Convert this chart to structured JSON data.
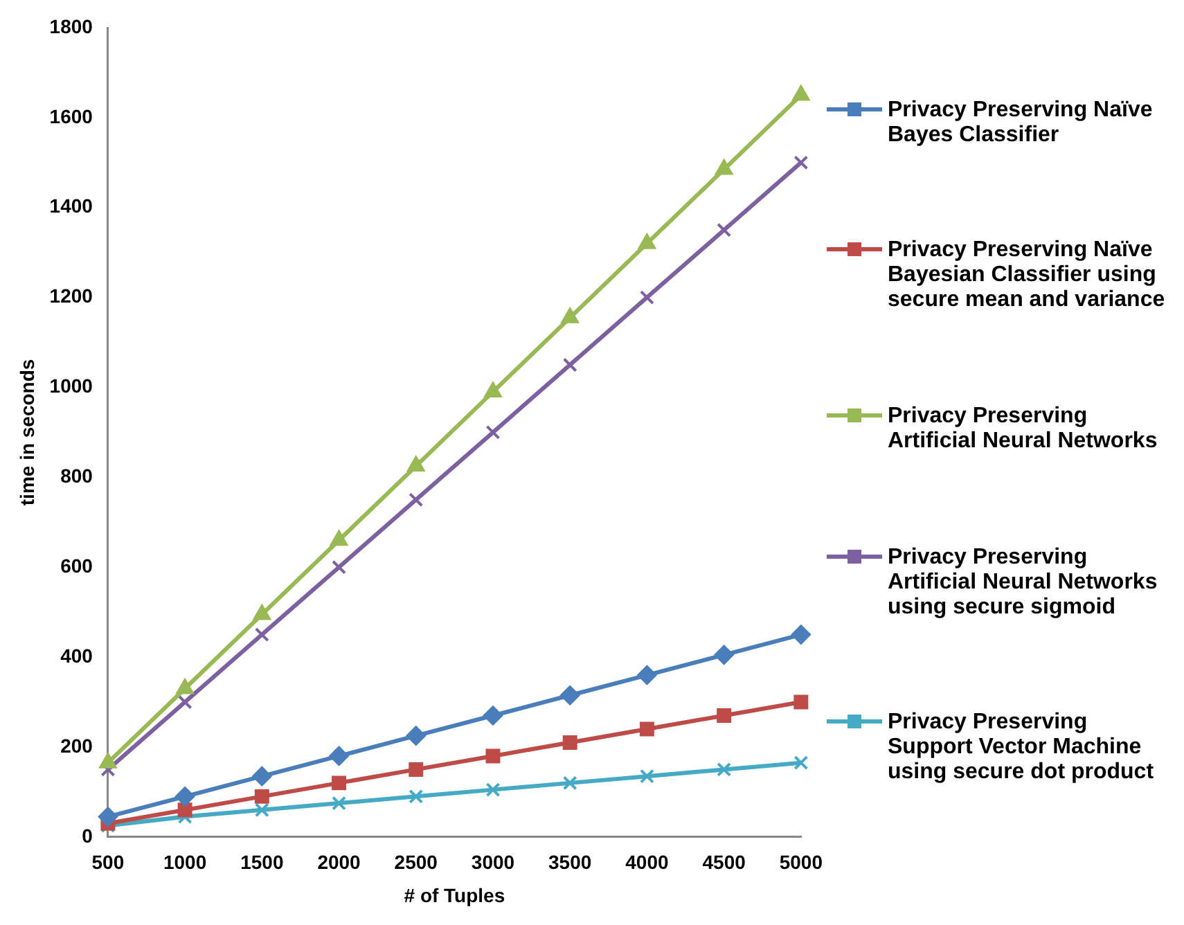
{
  "chart_data": {
    "type": "line",
    "xlabel": "# of Tuples",
    "ylabel": "time in seconds",
    "categories": [
      "500",
      "1000",
      "1500",
      "2000",
      "2500",
      "3000",
      "3500",
      "4000",
      "4500",
      "5000"
    ],
    "series": [
      {
        "name": "Privacy Preserving Naïve Bayes Classifier",
        "color": "#4a7ebb",
        "marker": "diamond",
        "values": [
          45,
          90,
          135,
          180,
          225,
          270,
          315,
          360,
          405,
          450
        ]
      },
      {
        "name": "Privacy Preserving Naïve Bayesian Classifier using secure mean and variance",
        "color": "#be4b48",
        "marker": "square",
        "values": [
          30,
          60,
          90,
          120,
          150,
          180,
          210,
          240,
          270,
          300
        ]
      },
      {
        "name": "Privacy Preserving Artificial Neural Networks",
        "color": "#98b954",
        "marker": "triangle",
        "values": [
          165,
          330,
          495,
          660,
          825,
          990,
          1155,
          1320,
          1485,
          1650
        ]
      },
      {
        "name": "Privacy Preserving Artificial Neural Networks using secure sigmoid",
        "color": "#7d60a0",
        "marker": "cross",
        "values": [
          150,
          300,
          450,
          600,
          750,
          900,
          1050,
          1200,
          1350,
          1500
        ]
      },
      {
        "name": "Privacy Preserving Support Vector Machine using secure dot product",
        "color": "#46aac5",
        "marker": "cross",
        "values": [
          25,
          45,
          60,
          75,
          90,
          105,
          120,
          135,
          150,
          165
        ]
      }
    ],
    "ylim": [
      0,
      1800
    ],
    "yticks": [
      0,
      200,
      400,
      600,
      800,
      1000,
      1200,
      1400,
      1600,
      1800
    ],
    "grid": false,
    "legend": "right",
    "line_style": "solid"
  }
}
